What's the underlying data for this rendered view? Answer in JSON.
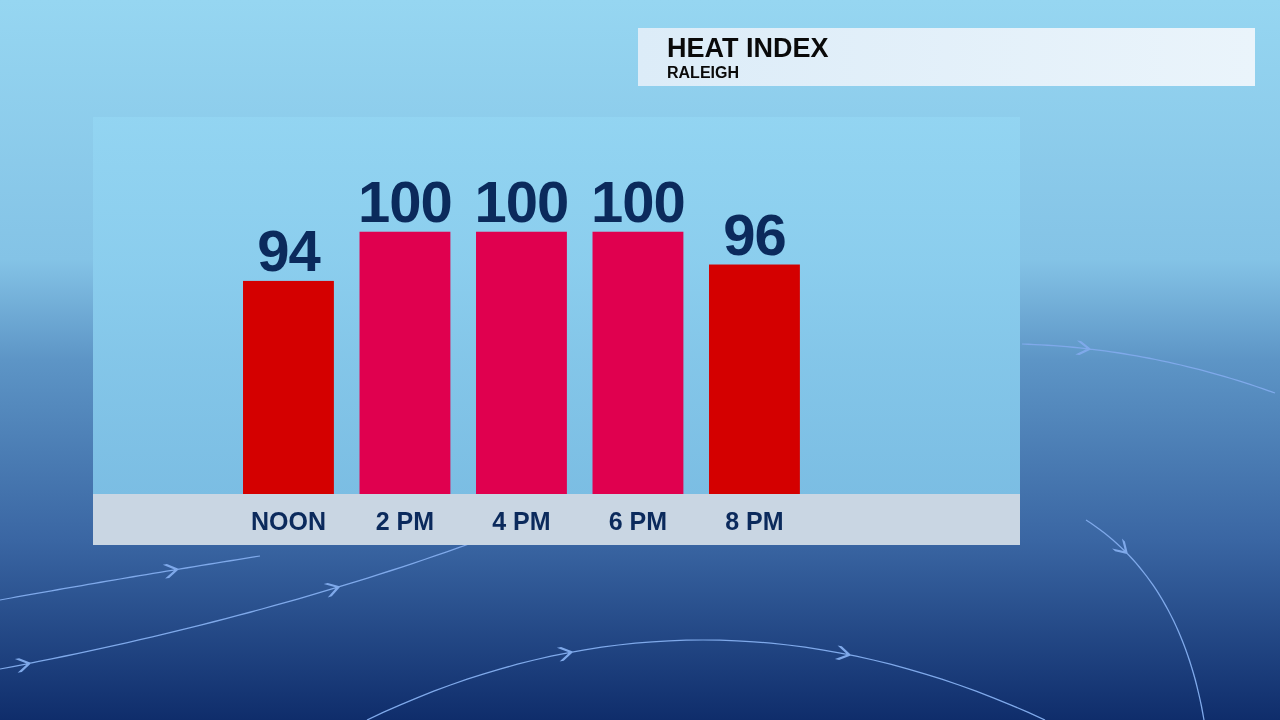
{
  "chart_data": {
    "type": "bar",
    "title": "HEAT INDEX",
    "subtitle": "RALEIGH",
    "categories": [
      "NOON",
      "2 PM",
      "4 PM",
      "6 PM",
      "8 PM"
    ],
    "values": [
      94,
      100,
      100,
      100,
      96
    ],
    "colors": [
      "#d40000",
      "#e0004f",
      "#e0004f",
      "#e0004f",
      "#d40000"
    ],
    "ylim": [
      68,
      114
    ],
    "tick_labels": "x",
    "data_labels": true
  }
}
